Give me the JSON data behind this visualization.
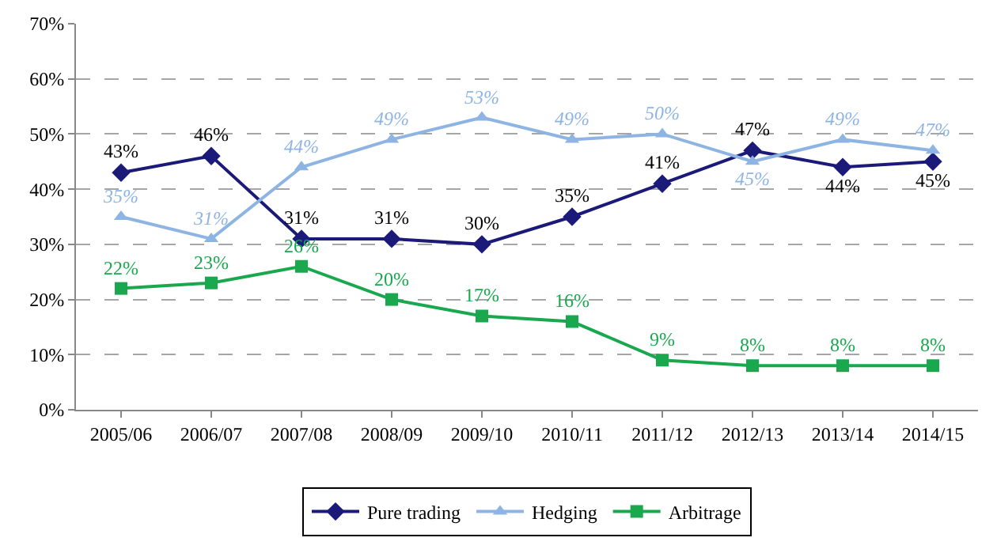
{
  "chart_data": {
    "type": "line",
    "categories": [
      "2005/06",
      "2006/07",
      "2007/08",
      "2008/09",
      "2009/10",
      "2010/11",
      "2011/12",
      "2012/13",
      "2013/14",
      "2014/15"
    ],
    "series": [
      {
        "name": "Pure trading",
        "color": "#1b1a78",
        "marker": "diamond",
        "values": [
          43,
          46,
          31,
          31,
          30,
          35,
          41,
          47,
          44,
          45
        ],
        "value_labels": [
          "43%",
          "46%",
          "31%",
          "31%",
          "30%",
          "35%",
          "41%",
          "47%",
          "44%",
          "45%"
        ]
      },
      {
        "name": "Hedging",
        "color": "#8eb4e3",
        "marker": "triangle",
        "values": [
          35,
          31,
          44,
          49,
          53,
          49,
          50,
          45,
          49,
          47
        ],
        "value_labels": [
          "35%",
          "31%",
          "44%",
          "49%",
          "53%",
          "49%",
          "50%",
          "45%",
          "49%",
          "47%"
        ]
      },
      {
        "name": "Arbitrage",
        "color": "#1aa84f",
        "marker": "square",
        "values": [
          22,
          23,
          26,
          20,
          17,
          16,
          9,
          8,
          8,
          8
        ],
        "value_labels": [
          "22%",
          "23%",
          "26%",
          "20%",
          "17%",
          "16%",
          "9%",
          "8%",
          "8%",
          "8%"
        ]
      }
    ],
    "ylim": [
      0,
      70
    ],
    "yticks": [
      {
        "value": 0,
        "label": "0%"
      },
      {
        "value": 10,
        "label": "10%"
      },
      {
        "value": 20,
        "label": "20%"
      },
      {
        "value": 30,
        "label": "30%"
      },
      {
        "value": 40,
        "label": "40%"
      },
      {
        "value": 50,
        "label": "50%"
      },
      {
        "value": 60,
        "label": "60%"
      },
      {
        "value": 70,
        "label": "70%"
      }
    ],
    "grid": "y",
    "legend": "bottom",
    "line_style": "solid"
  }
}
